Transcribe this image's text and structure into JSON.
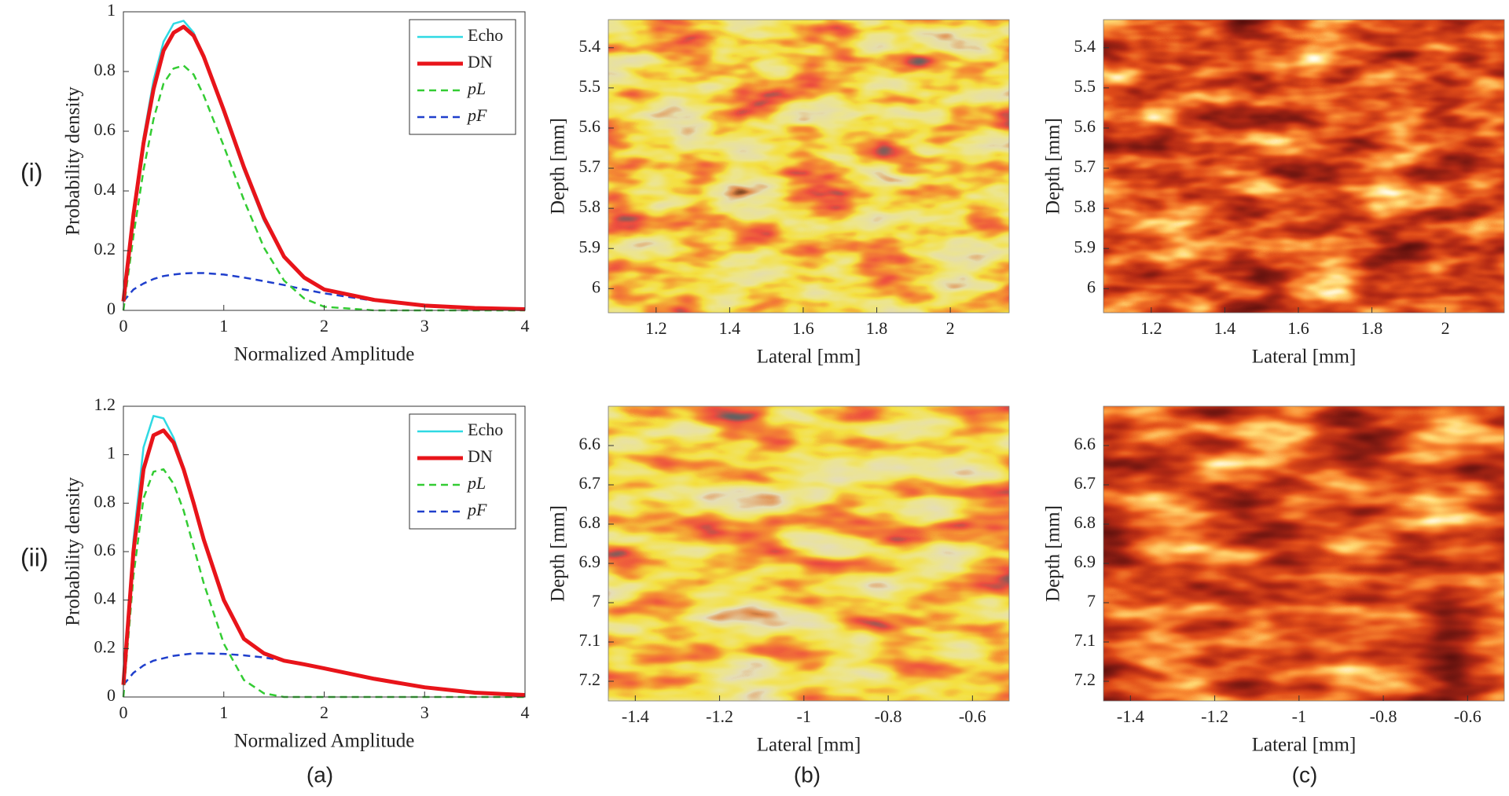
{
  "row_labels": [
    "(i)",
    "(ii)"
  ],
  "panel_labels": [
    "(a)",
    "(b)",
    "(c)"
  ],
  "chart_data": [
    {
      "type": "line",
      "xlabel": "Normalized Amplitude",
      "ylabel": "Probability density",
      "x": [
        0,
        0.1,
        0.2,
        0.3,
        0.4,
        0.5,
        0.6,
        0.7,
        0.8,
        1,
        1.2,
        1.4,
        1.6,
        1.8,
        2,
        2.5,
        3,
        3.5,
        4
      ],
      "series": [
        {
          "name": "Echo",
          "color": "#2fd9e3",
          "dashed": false,
          "width": 2.5,
          "values": [
            0.03,
            0.32,
            0.58,
            0.77,
            0.9,
            0.96,
            0.97,
            0.93,
            0.85,
            0.66,
            0.47,
            0.3,
            0.18,
            0.11,
            0.07,
            0.035,
            0.016,
            0.008,
            0.004
          ]
        },
        {
          "name": "DN",
          "color": "#e8141a",
          "dashed": false,
          "width": 5,
          "values": [
            0.03,
            0.32,
            0.56,
            0.74,
            0.87,
            0.93,
            0.95,
            0.92,
            0.85,
            0.67,
            0.48,
            0.31,
            0.18,
            0.11,
            0.07,
            0.035,
            0.016,
            0.008,
            0.004
          ]
        },
        {
          "name": "pL",
          "color": "#33cc33",
          "dashed": true,
          "width": 2.5,
          "values": [
            0,
            0.25,
            0.47,
            0.64,
            0.76,
            0.81,
            0.82,
            0.79,
            0.72,
            0.55,
            0.37,
            0.21,
            0.1,
            0.04,
            0.012,
            0,
            0,
            0,
            0
          ]
        },
        {
          "name": "pF",
          "color": "#1f3fcc",
          "dashed": true,
          "width": 2.5,
          "values": [
            0.03,
            0.07,
            0.09,
            0.105,
            0.115,
            0.12,
            0.124,
            0.125,
            0.125,
            0.12,
            0.11,
            0.098,
            0.085,
            0.07,
            0.057,
            0.032,
            0.016,
            0.008,
            0.004
          ]
        }
      ],
      "xlim": [
        0,
        4
      ],
      "ylim": [
        0,
        1
      ],
      "xticks": [
        0,
        1,
        2,
        3,
        4
      ],
      "yticks": [
        0,
        0.2,
        0.4,
        0.6,
        0.8,
        1
      ],
      "legend": "upper right"
    },
    {
      "type": "heatmap",
      "xlabel": "Lateral [mm]",
      "ylabel": "Depth [mm]",
      "xlim": [
        1.07,
        2.16
      ],
      "ylim": [
        5.33,
        6.06
      ],
      "y_inverted": true,
      "xticks": [
        1.2,
        1.4,
        1.6,
        1.8,
        2
      ],
      "yticks": [
        5.4,
        5.5,
        5.6,
        5.7,
        5.8,
        5.9,
        6
      ]
    },
    {
      "type": "heatmap",
      "xlabel": "Lateral [mm]",
      "ylabel": "Depth [mm]",
      "xlim": [
        1.07,
        2.16
      ],
      "ylim": [
        5.33,
        6.06
      ],
      "y_inverted": true,
      "xticks": [
        1.2,
        1.4,
        1.6,
        1.8,
        2
      ],
      "yticks": [
        5.4,
        5.5,
        5.6,
        5.7,
        5.8,
        5.9,
        6
      ]
    },
    {
      "type": "line",
      "xlabel": "Normalized Amplitude",
      "ylabel": "Probability density",
      "x": [
        0,
        0.1,
        0.2,
        0.3,
        0.4,
        0.5,
        0.6,
        0.7,
        0.8,
        1,
        1.2,
        1.4,
        1.6,
        1.8,
        2,
        2.5,
        3,
        3.5,
        4
      ],
      "series": [
        {
          "name": "Echo",
          "color": "#2fd9e3",
          "dashed": false,
          "width": 2.5,
          "values": [
            0.05,
            0.65,
            1.03,
            1.16,
            1.15,
            1.07,
            0.95,
            0.8,
            0.65,
            0.4,
            0.24,
            0.175,
            0.15,
            0.135,
            0.118,
            0.075,
            0.04,
            0.018,
            0.008
          ]
        },
        {
          "name": "DN",
          "color": "#e8141a",
          "dashed": false,
          "width": 5,
          "values": [
            0.05,
            0.6,
            0.94,
            1.08,
            1.1,
            1.05,
            0.94,
            0.8,
            0.65,
            0.4,
            0.24,
            0.18,
            0.15,
            0.135,
            0.118,
            0.075,
            0.04,
            0.018,
            0.008
          ]
        },
        {
          "name": "pL",
          "color": "#33cc33",
          "dashed": true,
          "width": 2.5,
          "values": [
            0,
            0.5,
            0.82,
            0.93,
            0.94,
            0.88,
            0.77,
            0.62,
            0.47,
            0.22,
            0.07,
            0.015,
            0,
            0,
            0,
            0,
            0,
            0,
            0
          ]
        },
        {
          "name": "pF",
          "color": "#1f3fcc",
          "dashed": true,
          "width": 2.5,
          "values": [
            0.05,
            0.1,
            0.13,
            0.15,
            0.16,
            0.17,
            0.175,
            0.18,
            0.18,
            0.178,
            0.172,
            0.163,
            0.15,
            0.135,
            0.118,
            0.075,
            0.04,
            0.018,
            0.008
          ]
        }
      ],
      "xlim": [
        0,
        4
      ],
      "ylim": [
        0,
        1.2
      ],
      "xticks": [
        0,
        1,
        2,
        3,
        4
      ],
      "yticks": [
        0,
        0.2,
        0.4,
        0.6,
        0.8,
        1,
        1.2
      ],
      "legend": "upper right"
    },
    {
      "type": "heatmap",
      "xlabel": "Lateral [mm]",
      "ylabel": "Depth [mm]",
      "xlim": [
        -1.464,
        -0.513
      ],
      "ylim": [
        6.5,
        7.25
      ],
      "y_inverted": true,
      "xticks": [
        -1.4,
        -1.2,
        -1,
        -0.8,
        -0.6
      ],
      "yticks": [
        6.6,
        6.7,
        6.8,
        6.9,
        7,
        7.1,
        7.2
      ]
    },
    {
      "type": "heatmap",
      "xlabel": "Lateral [mm]",
      "ylabel": "Depth [mm]",
      "xlim": [
        -1.464,
        -0.513
      ],
      "ylim": [
        6.5,
        7.25
      ],
      "y_inverted": true,
      "xticks": [
        -1.4,
        -1.2,
        -1,
        -0.8,
        -0.6
      ],
      "yticks": [
        6.6,
        6.7,
        6.8,
        6.9,
        7,
        7.1,
        7.2
      ]
    }
  ]
}
